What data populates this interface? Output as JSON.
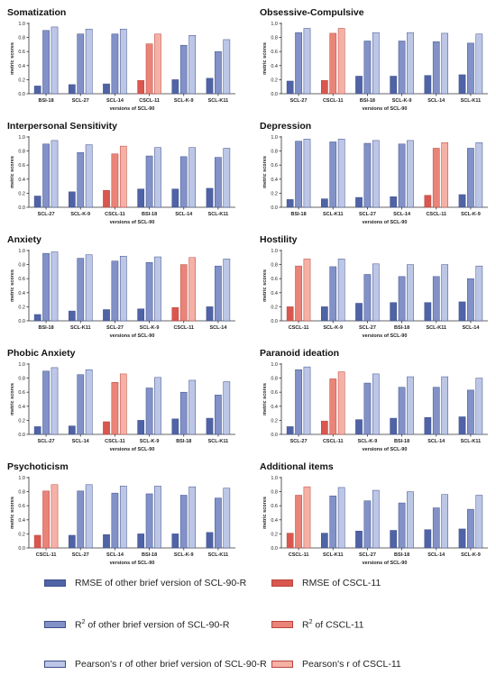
{
  "colors": {
    "rmse_other": "#4f63a6",
    "r2_other": "#8292c8",
    "r_other": "#bcc6e6",
    "rmse_cscl": "#d9574f",
    "r2_cscl": "#ea8478",
    "r_cscl": "#f5b1a6"
  },
  "chart_data": [
    {
      "type": "bar",
      "title": "Somatization",
      "xlabel": "versions of SCL-90",
      "ylabel": "metric scores",
      "ylim": [
        0,
        1.0
      ],
      "yticks": [
        "0.0",
        "0.2",
        "0.4",
        "0.6",
        "0.8",
        "1.0"
      ],
      "categories": [
        "BSI-18",
        "SCL-27",
        "SCL-14",
        "CSCL-11",
        "SCL-K-9",
        "SCL-K11"
      ],
      "series": [
        {
          "name": "RMSE",
          "values": [
            0.11,
            0.13,
            0.14,
            0.19,
            0.2,
            0.22
          ]
        },
        {
          "name": "R2",
          "values": [
            0.9,
            0.85,
            0.85,
            0.71,
            0.69,
            0.6
          ]
        },
        {
          "name": "r",
          "values": [
            0.95,
            0.92,
            0.92,
            0.85,
            0.83,
            0.77
          ]
        }
      ]
    },
    {
      "type": "bar",
      "title": "Obsessive-Compulsive",
      "xlabel": "versions of SCL-90",
      "ylabel": "metric scores",
      "ylim": [
        0,
        1.0
      ],
      "yticks": [
        "0.0",
        "0.2",
        "0.4",
        "0.6",
        "0.8",
        "1.0"
      ],
      "categories": [
        "SCL-27",
        "CSCL-11",
        "BSI-18",
        "SCL-K-9",
        "SCL-14",
        "SCL-K11"
      ],
      "series": [
        {
          "name": "RMSE",
          "values": [
            0.18,
            0.19,
            0.25,
            0.25,
            0.26,
            0.27
          ]
        },
        {
          "name": "R2",
          "values": [
            0.87,
            0.86,
            0.75,
            0.75,
            0.74,
            0.72
          ]
        },
        {
          "name": "r",
          "values": [
            0.93,
            0.93,
            0.87,
            0.87,
            0.86,
            0.85
          ]
        }
      ]
    },
    {
      "type": "bar",
      "title": "Interpersonal Sensitivity",
      "xlabel": "versions of SCL-90",
      "ylabel": "metric scores",
      "ylim": [
        0,
        1.0
      ],
      "yticks": [
        "0.0",
        "0.2",
        "0.4",
        "0.6",
        "0.8",
        "1.0"
      ],
      "categories": [
        "SCL-27",
        "SCL-K-9",
        "CSCL-11",
        "BSI-18",
        "SCL-14",
        "SCL-K11"
      ],
      "series": [
        {
          "name": "RMSE",
          "values": [
            0.16,
            0.22,
            0.24,
            0.26,
            0.26,
            0.27
          ]
        },
        {
          "name": "R2",
          "values": [
            0.9,
            0.78,
            0.76,
            0.73,
            0.72,
            0.71
          ]
        },
        {
          "name": "r",
          "values": [
            0.95,
            0.89,
            0.87,
            0.85,
            0.85,
            0.84
          ]
        }
      ]
    },
    {
      "type": "bar",
      "title": "Depression",
      "xlabel": "versions of SCL-90",
      "ylabel": "metric scores",
      "ylim": [
        0,
        1.0
      ],
      "yticks": [
        "0.0",
        "0.2",
        "0.4",
        "0.6",
        "0.8",
        "1.0"
      ],
      "categories": [
        "BSI-18",
        "SCL-K11",
        "SCL-27",
        "SCL-14",
        "CSCL-11",
        "SCL-K-9"
      ],
      "series": [
        {
          "name": "RMSE",
          "values": [
            0.11,
            0.12,
            0.14,
            0.15,
            0.17,
            0.18
          ]
        },
        {
          "name": "R2",
          "values": [
            0.94,
            0.93,
            0.91,
            0.9,
            0.84,
            0.84
          ]
        },
        {
          "name": "r",
          "values": [
            0.97,
            0.97,
            0.95,
            0.95,
            0.92,
            0.92
          ]
        }
      ]
    },
    {
      "type": "bar",
      "title": "Anxiety",
      "xlabel": "versions of SCL-90",
      "ylabel": "metric scores",
      "ylim": [
        0,
        1.0
      ],
      "yticks": [
        "0.0",
        "0.2",
        "0.4",
        "0.6",
        "0.8",
        "1.0"
      ],
      "categories": [
        "BSI-18",
        "SCL-K11",
        "SCL-27",
        "SCL-K-9",
        "CSCL-11",
        "SCL-14"
      ],
      "series": [
        {
          "name": "RMSE",
          "values": [
            0.09,
            0.14,
            0.16,
            0.17,
            0.19,
            0.2
          ]
        },
        {
          "name": "R2",
          "values": [
            0.96,
            0.89,
            0.85,
            0.83,
            0.8,
            0.78
          ]
        },
        {
          "name": "r",
          "values": [
            0.98,
            0.94,
            0.92,
            0.91,
            0.9,
            0.88
          ]
        }
      ]
    },
    {
      "type": "bar",
      "title": "Hostility",
      "xlabel": "versions of SCL-90",
      "ylabel": "metric scores",
      "ylim": [
        0,
        1.0
      ],
      "yticks": [
        "0.0",
        "0.2",
        "0.4",
        "0.6",
        "0.8",
        "1.0"
      ],
      "categories": [
        "CSCL-11",
        "SCL-K-9",
        "SCL-27",
        "BSI-18",
        "SCL-K11",
        "SCL-14"
      ],
      "series": [
        {
          "name": "RMSE",
          "values": [
            0.2,
            0.2,
            0.25,
            0.26,
            0.26,
            0.27
          ]
        },
        {
          "name": "R2",
          "values": [
            0.78,
            0.77,
            0.66,
            0.63,
            0.63,
            0.6
          ]
        },
        {
          "name": "r",
          "values": [
            0.88,
            0.88,
            0.81,
            0.8,
            0.8,
            0.78
          ]
        }
      ]
    },
    {
      "type": "bar",
      "title": "Phobic Anxiety",
      "xlabel": "versions of SCL-90",
      "ylabel": "metric scores",
      "ylim": [
        0,
        1.0
      ],
      "yticks": [
        "0.0",
        "0.2",
        "0.4",
        "0.6",
        "0.8",
        "1.0"
      ],
      "categories": [
        "SCL-27",
        "SCL-14",
        "CSCL-11",
        "SCL-K-9",
        "BSI-18",
        "SCL-K11"
      ],
      "series": [
        {
          "name": "RMSE",
          "values": [
            0.11,
            0.12,
            0.18,
            0.2,
            0.22,
            0.23
          ]
        },
        {
          "name": "R2",
          "values": [
            0.9,
            0.85,
            0.74,
            0.66,
            0.6,
            0.56
          ]
        },
        {
          "name": "r",
          "values": [
            0.95,
            0.92,
            0.86,
            0.81,
            0.77,
            0.75
          ]
        }
      ]
    },
    {
      "type": "bar",
      "title": "Paranoid ideation",
      "xlabel": "versions of SCL-90",
      "ylabel": "metric scores",
      "ylim": [
        0,
        1.0
      ],
      "yticks": [
        "0.0",
        "0.2",
        "0.4",
        "0.6",
        "0.8",
        "1.0"
      ],
      "categories": [
        "SCL-27",
        "CSCL-11",
        "SCL-K-9",
        "BSI-18",
        "SCL-14",
        "SCL-K11"
      ],
      "series": [
        {
          "name": "RMSE",
          "values": [
            0.11,
            0.19,
            0.21,
            0.23,
            0.24,
            0.25
          ]
        },
        {
          "name": "R2",
          "values": [
            0.92,
            0.79,
            0.73,
            0.67,
            0.67,
            0.63
          ]
        },
        {
          "name": "r",
          "values": [
            0.96,
            0.89,
            0.86,
            0.82,
            0.82,
            0.8
          ]
        }
      ]
    },
    {
      "type": "bar",
      "title": "Psychoticism",
      "xlabel": "versions of SCL-90",
      "ylabel": "metric scores",
      "ylim": [
        0,
        1.0
      ],
      "yticks": [
        "0.0",
        "0.2",
        "0.4",
        "0.6",
        "0.8",
        "1.0"
      ],
      "categories": [
        "CSCL-11",
        "SCL-27",
        "SCL-14",
        "BSI-18",
        "SCL-K-9",
        "SCL-K11"
      ],
      "series": [
        {
          "name": "RMSE",
          "values": [
            0.18,
            0.18,
            0.19,
            0.2,
            0.2,
            0.22
          ]
        },
        {
          "name": "R2",
          "values": [
            0.81,
            0.81,
            0.78,
            0.77,
            0.75,
            0.71
          ]
        },
        {
          "name": "r",
          "values": [
            0.9,
            0.9,
            0.88,
            0.88,
            0.87,
            0.85
          ]
        }
      ]
    },
    {
      "type": "bar",
      "title": "Additional items",
      "xlabel": "versions of SCL-90",
      "ylabel": "metric scores",
      "ylim": [
        0,
        1.0
      ],
      "yticks": [
        "0.0",
        "0.2",
        "0.4",
        "0.6",
        "0.8",
        "1.0"
      ],
      "categories": [
        "CSCL-11",
        "SCL-K11",
        "SCL-27",
        "BSI-18",
        "SCL-14",
        "SCL-K-9"
      ],
      "series": [
        {
          "name": "RMSE",
          "values": [
            0.21,
            0.21,
            0.24,
            0.25,
            0.26,
            0.27
          ]
        },
        {
          "name": "R2",
          "values": [
            0.75,
            0.74,
            0.67,
            0.64,
            0.57,
            0.55
          ]
        },
        {
          "name": "r",
          "values": [
            0.87,
            0.86,
            0.82,
            0.8,
            0.76,
            0.75
          ]
        }
      ]
    }
  ],
  "legend": {
    "items": [
      {
        "label": "RMSE of other brief version of SCL-90-R",
        "color": "#4f63a6"
      },
      {
        "label": "RMSE of CSCL-11",
        "color": "#d9574f"
      },
      {
        "label": "of other brief version of SCL-90-R",
        "color": "#8292c8",
        "prefix": "R",
        "sup": "2"
      },
      {
        "label": "of CSCL-11",
        "color": "#ea8478",
        "prefix": "R",
        "sup": "2"
      },
      {
        "label": "Pearson's r of other brief version of SCL-90-R",
        "color": "#bcc6e6"
      },
      {
        "label": "Pearson's r of CSCL-11",
        "color": "#f5b1a6"
      }
    ]
  }
}
